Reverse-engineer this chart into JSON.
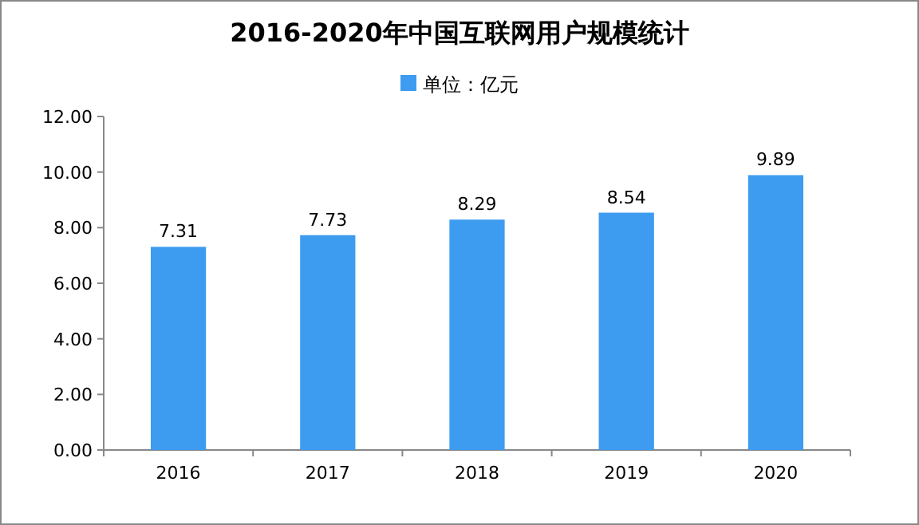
{
  "chart_data": {
    "type": "bar",
    "title": "2016-2020年中国互联网用户规模统计",
    "categories": [
      "2016",
      "2017",
      "2018",
      "2019",
      "2020"
    ],
    "series": [
      {
        "name": "单位：亿元",
        "color": "#3d9cf0",
        "values": [
          7.31,
          7.73,
          8.29,
          8.54,
          9.89
        ]
      }
    ],
    "ylim": [
      0,
      12
    ],
    "yticks": [
      {
        "value": 0,
        "label": "0.00"
      },
      {
        "value": 2,
        "label": "2.00"
      },
      {
        "value": 4,
        "label": "4.00"
      },
      {
        "value": 6,
        "label": "6.00"
      },
      {
        "value": 8,
        "label": "8.00"
      },
      {
        "value": 10,
        "label": "10.00"
      },
      {
        "value": 12,
        "label": "12.00"
      }
    ],
    "data_labels": true,
    "legend": "top"
  }
}
